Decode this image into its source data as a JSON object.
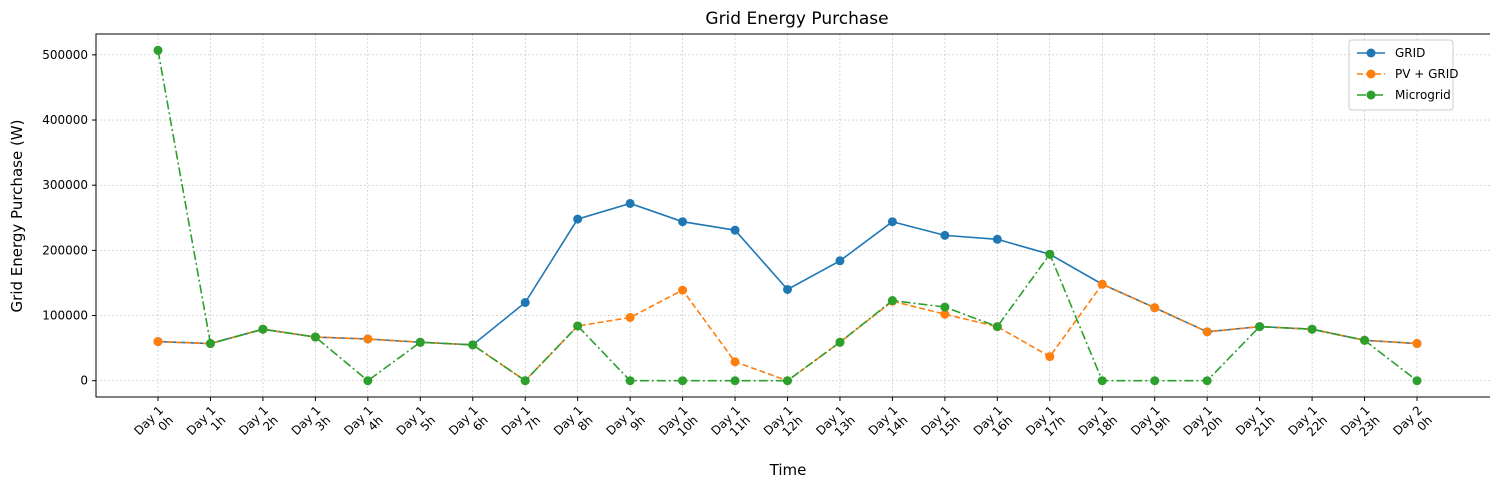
{
  "chart_data": {
    "type": "line",
    "title": "Grid Energy Purchase",
    "xlabel": "Time",
    "ylabel": "Grid Energy Purchase (W)",
    "categories": [
      [
        "Day 1",
        "0h"
      ],
      [
        "Day 1",
        "1h"
      ],
      [
        "Day 1",
        "2h"
      ],
      [
        "Day 1",
        "3h"
      ],
      [
        "Day 1",
        "4h"
      ],
      [
        "Day 1",
        "5h"
      ],
      [
        "Day 1",
        "6h"
      ],
      [
        "Day 1",
        "7h"
      ],
      [
        "Day 1",
        "8h"
      ],
      [
        "Day 1",
        "9h"
      ],
      [
        "Day 1",
        "10h"
      ],
      [
        "Day 1",
        "11h"
      ],
      [
        "Day 1",
        "12h"
      ],
      [
        "Day 1",
        "13h"
      ],
      [
        "Day 1",
        "14h"
      ],
      [
        "Day 1",
        "15h"
      ],
      [
        "Day 1",
        "16h"
      ],
      [
        "Day 1",
        "17h"
      ],
      [
        "Day 1",
        "18h"
      ],
      [
        "Day 1",
        "19h"
      ],
      [
        "Day 1",
        "20h"
      ],
      [
        "Day 1",
        "21h"
      ],
      [
        "Day 1",
        "22h"
      ],
      [
        "Day 1",
        "23h"
      ],
      [
        "Day 2",
        "0h"
      ]
    ],
    "ylim": [
      -25000,
      532000
    ],
    "yticks": [
      0,
      100000,
      200000,
      300000,
      400000,
      500000
    ],
    "grid": true,
    "legend_position": "top-right",
    "series": [
      {
        "name": "GRID",
        "color": "#1f77b4",
        "line_style": "solid",
        "values": [
          60000,
          57000,
          79000,
          67000,
          64000,
          59000,
          55000,
          120000,
          248000,
          272000,
          244000,
          231000,
          140000,
          184000,
          244000,
          223000,
          217000,
          194000,
          148000,
          112000,
          75000,
          83000,
          79000,
          62000,
          57000
        ]
      },
      {
        "name": "PV + GRID",
        "color": "#ff7f0e",
        "line_style": "dashed",
        "values": [
          60000,
          57000,
          79000,
          67000,
          64000,
          59000,
          55000,
          0,
          84000,
          97000,
          139000,
          29000,
          0,
          59000,
          122000,
          102000,
          83000,
          37000,
          148000,
          112000,
          75000,
          83000,
          79000,
          62000,
          57000
        ]
      },
      {
        "name": "Microgrid",
        "color": "#2ca02c",
        "line_style": "dashdot",
        "values": [
          507000,
          57000,
          79000,
          67000,
          0,
          59000,
          55000,
          0,
          84000,
          0,
          0,
          0,
          0,
          59000,
          123000,
          113000,
          83000,
          194000,
          0,
          0,
          0,
          83000,
          79000,
          62000,
          0
        ]
      }
    ]
  }
}
